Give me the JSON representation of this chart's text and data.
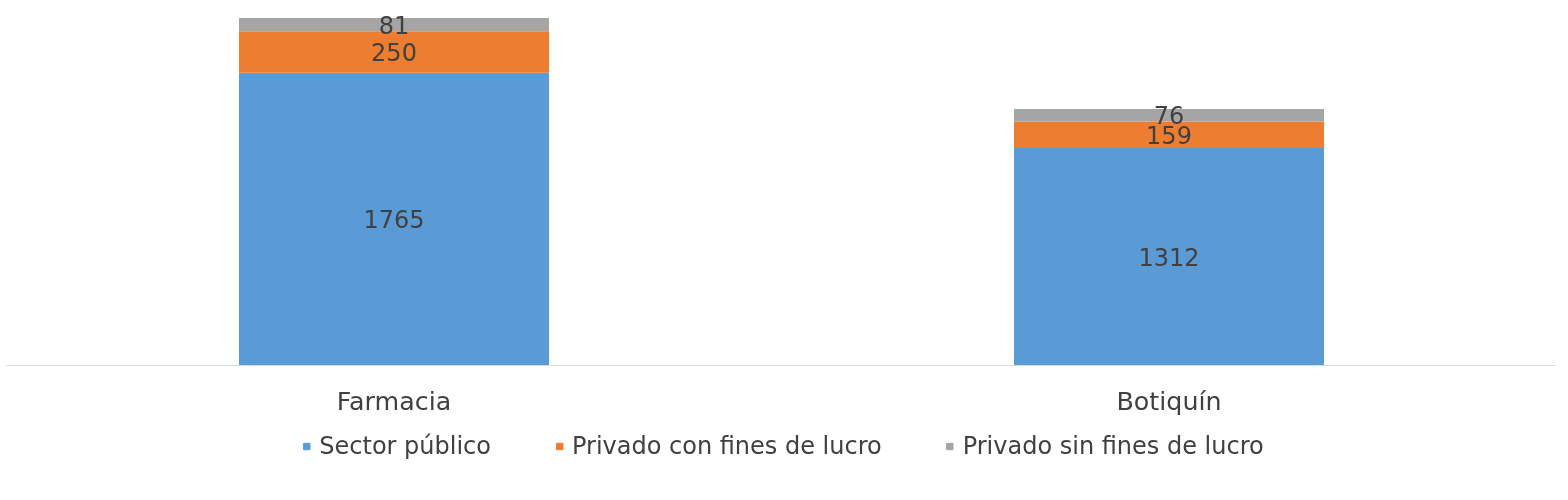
{
  "chart_data": {
    "type": "bar",
    "stacked": true,
    "categories": [
      "Farmacia",
      "Botiquín"
    ],
    "series": [
      {
        "name": "Sector público",
        "color": "#5b9bd5",
        "values": [
          1765,
          1312
        ]
      },
      {
        "name": "Privado con fines de lucro",
        "color": "#ed7d31",
        "values": [
          250,
          159
        ]
      },
      {
        "name": "Privado sin fines de lucro",
        "color": "#a5a5a5",
        "values": [
          81,
          76
        ]
      }
    ],
    "data_labels": true,
    "grid": false,
    "legend": "bottom",
    "tick_labels": "x"
  }
}
